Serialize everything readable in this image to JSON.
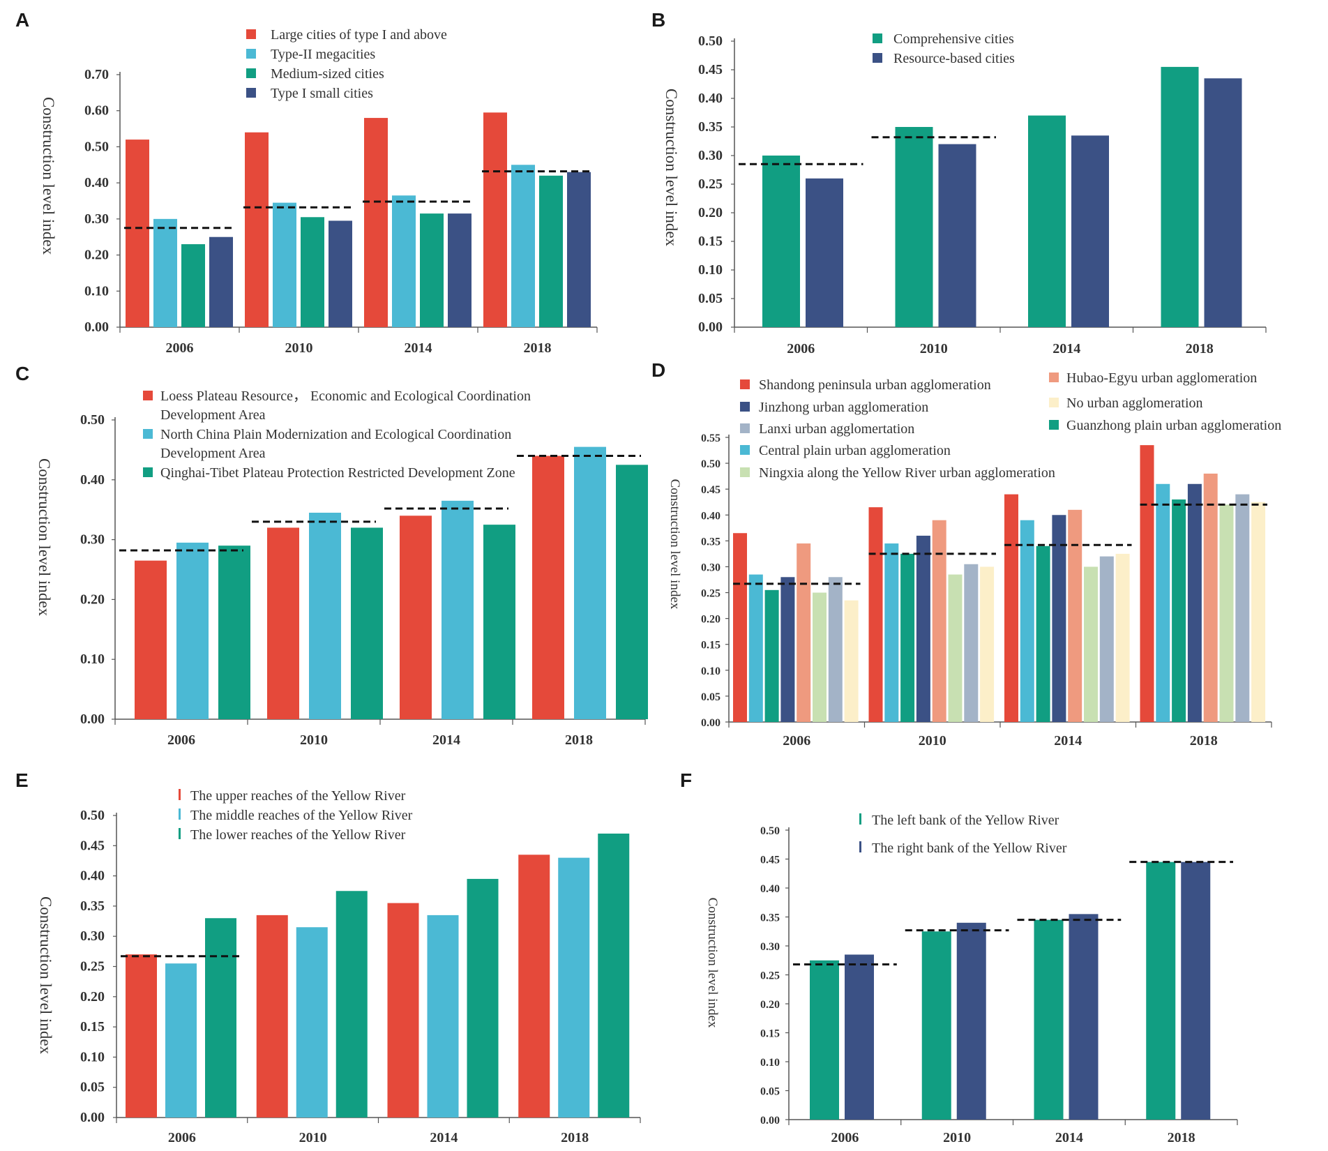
{
  "chart_data": [
    {
      "panel": "A",
      "type": "bar",
      "title": "",
      "categories": [
        "2006",
        "2010",
        "2014",
        "2018"
      ],
      "series": [
        {
          "name": "Large cities of type I and above",
          "color": "#E5493A",
          "values": [
            0.52,
            0.54,
            0.58,
            0.595
          ]
        },
        {
          "name": "Type-II megacities",
          "color": "#4BB9D4",
          "values": [
            0.3,
            0.345,
            0.365,
            0.45
          ]
        },
        {
          "name": "Medium-sized cities",
          "color": "#119E82",
          "values": [
            0.23,
            0.305,
            0.315,
            0.42
          ]
        },
        {
          "name": "Type I small cities",
          "color": "#3B5185",
          "values": [
            0.25,
            0.295,
            0.315,
            0.43
          ]
        }
      ],
      "averages": [
        0.275,
        0.332,
        0.348,
        0.432
      ],
      "xlabel": "",
      "ylabel": "Construction level index",
      "ylim": [
        0,
        0.7
      ],
      "yticks": [
        "0.00",
        "0.10",
        "0.20",
        "0.30",
        "0.40",
        "0.50",
        "0.60",
        "0.70"
      ]
    },
    {
      "panel": "B",
      "type": "bar",
      "title": "",
      "categories": [
        "2006",
        "2010",
        "2014",
        "2018"
      ],
      "series": [
        {
          "name": "Comprehensive cities",
          "color": "#119E82",
          "values": [
            0.3,
            0.35,
            0.37,
            0.455
          ]
        },
        {
          "name": "Resource-based cities",
          "color": "#3B5185",
          "values": [
            0.26,
            0.32,
            0.335,
            0.435
          ]
        }
      ],
      "averages": [
        0.285,
        0.332,
        null,
        null
      ],
      "xlabel": "",
      "ylabel": "Construction level index",
      "ylim": [
        0,
        0.5
      ],
      "yticks": [
        "0.00",
        "0.05",
        "0.10",
        "0.15",
        "0.20",
        "0.25",
        "0.30",
        "0.35",
        "0.40",
        "0.45",
        "0.50"
      ]
    },
    {
      "panel": "C",
      "type": "bar",
      "title": "",
      "categories": [
        "2006",
        "2010",
        "2014",
        "2018"
      ],
      "series": [
        {
          "name": "Loess Plateau Resource， Economic and Ecological Coordination Development Area",
          "color": "#E5493A",
          "values": [
            0.265,
            0.32,
            0.34,
            0.44
          ]
        },
        {
          "name": "North China Plain Modernization and Ecological Coordination Development Area",
          "color": "#4BB9D4",
          "values": [
            0.295,
            0.345,
            0.365,
            0.455
          ]
        },
        {
          "name": "Qinghai-Tibet Plateau Protection Restricted Development Zone",
          "color": "#119E82",
          "values": [
            0.29,
            0.32,
            0.325,
            0.425
          ]
        }
      ],
      "averages": [
        0.282,
        0.33,
        0.352,
        0.44
      ],
      "xlabel": "",
      "ylabel": "Construction level index",
      "ylim": [
        0,
        0.5
      ],
      "yticks": [
        "0.00",
        "0.10",
        "0.20",
        "0.30",
        "0.40",
        "0.50"
      ]
    },
    {
      "panel": "D",
      "type": "bar",
      "title": "",
      "categories": [
        "2006",
        "2010",
        "2014",
        "2018"
      ],
      "series": [
        {
          "name": "Shandong peninsula urban agglomeration",
          "color": "#E5493A",
          "values": [
            0.365,
            0.415,
            0.44,
            0.535
          ]
        },
        {
          "name": "Central plain urban agglomeration",
          "color": "#4BB9D4",
          "values": [
            0.285,
            0.345,
            0.39,
            0.46
          ]
        },
        {
          "name": "Guanzhong plain urban agglomeration",
          "color": "#119E82",
          "values": [
            0.255,
            0.325,
            0.34,
            0.43
          ]
        },
        {
          "name": "Jinzhong urban agglomeration",
          "color": "#3B5185",
          "values": [
            0.28,
            0.36,
            0.4,
            0.46
          ]
        },
        {
          "name": "Hubao-Egyu urban agglomeration",
          "color": "#EF9A7F",
          "values": [
            0.345,
            0.39,
            0.41,
            0.48
          ]
        },
        {
          "name": "Ningxia along the Yellow River urban agglomeration",
          "color": "#C8E0B2",
          "values": [
            0.25,
            0.285,
            0.3,
            0.42
          ]
        },
        {
          "name": "Lanxi urban agglomertation",
          "color": "#A3B3C7",
          "values": [
            0.28,
            0.305,
            0.32,
            0.44
          ]
        },
        {
          "name": "No urban agglomeration",
          "color": "#FCEFC9",
          "values": [
            0.235,
            0.3,
            0.325,
            0.425
          ]
        }
      ],
      "averages": [
        0.267,
        0.325,
        0.342,
        0.42
      ],
      "xlabel": "",
      "ylabel": "Construction level index",
      "ylim": [
        0,
        0.55
      ],
      "yticks": [
        "0.00",
        "0.05",
        "0.10",
        "0.15",
        "0.20",
        "0.25",
        "0.30",
        "0.35",
        "0.40",
        "0.45",
        "0.50",
        "0.55"
      ]
    },
    {
      "panel": "E",
      "type": "bar",
      "title": "",
      "categories": [
        "2006",
        "2010",
        "2014",
        "2018"
      ],
      "series": [
        {
          "name": "The upper reaches of the Yellow River",
          "color": "#E5493A",
          "values": [
            0.27,
            0.335,
            0.355,
            0.435
          ]
        },
        {
          "name": "The middle reaches of the Yellow River",
          "color": "#4BB9D4",
          "values": [
            0.255,
            0.315,
            0.335,
            0.43
          ]
        },
        {
          "name": "The lower reaches of the Yellow River",
          "color": "#119E82",
          "values": [
            0.33,
            0.375,
            0.395,
            0.47
          ]
        }
      ],
      "averages": [
        0.267,
        null,
        null,
        null
      ],
      "xlabel": "",
      "ylabel": "Construction level index",
      "ylim": [
        0,
        0.5
      ],
      "yticks": [
        "0.00",
        "0.05",
        "0.10",
        "0.15",
        "0.20",
        "0.25",
        "0.30",
        "0.35",
        "0.40",
        "0.45",
        "0.50"
      ]
    },
    {
      "panel": "F",
      "type": "bar",
      "title": "",
      "categories": [
        "2006",
        "2010",
        "2014",
        "2018"
      ],
      "series": [
        {
          "name": "The left bank of the Yellow River",
          "color": "#119E82",
          "values": [
            0.275,
            0.325,
            0.345,
            0.445
          ]
        },
        {
          "name": "The right bank of the Yellow River",
          "color": "#3B5185",
          "values": [
            0.285,
            0.34,
            0.355,
            0.445
          ]
        }
      ],
      "averages": [
        0.268,
        0.327,
        0.345,
        0.445
      ],
      "xlabel": "",
      "ylabel": "Construction level index",
      "ylim": [
        0,
        0.5
      ],
      "yticks": [
        "0.00",
        "0.05",
        "0.10",
        "0.15",
        "0.20",
        "0.25",
        "0.30",
        "0.35",
        "0.40",
        "0.45",
        "0.50"
      ]
    }
  ]
}
